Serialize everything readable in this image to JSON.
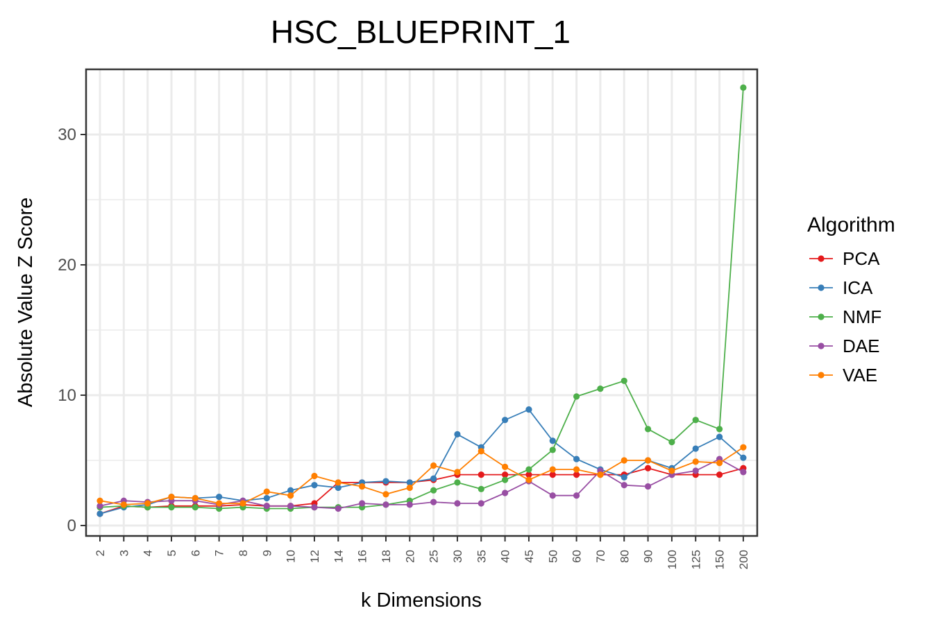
{
  "chart_data": {
    "type": "line",
    "title": "HSC_BLUEPRINT_1",
    "xlabel": "k Dimensions",
    "ylabel": "Absolute Value Z Score",
    "categories": [
      "2",
      "3",
      "4",
      "5",
      "6",
      "7",
      "8",
      "9",
      "10",
      "12",
      "14",
      "16",
      "18",
      "20",
      "25",
      "30",
      "35",
      "40",
      "45",
      "50",
      "60",
      "70",
      "80",
      "90",
      "100",
      "125",
      "150",
      "200"
    ],
    "ylim": [
      -0.8,
      35
    ],
    "yticks": [
      0,
      10,
      20,
      30
    ],
    "grid": true,
    "legend": {
      "title": "Algorithm",
      "position": "right"
    },
    "series": [
      {
        "name": "PCA",
        "color": "#e41a1c",
        "values": [
          0.9,
          1.5,
          1.4,
          1.5,
          1.5,
          1.5,
          1.6,
          1.5,
          1.5,
          1.7,
          3.3,
          3.3,
          3.3,
          3.3,
          3.5,
          3.9,
          3.9,
          3.9,
          3.9,
          3.9,
          3.9,
          3.9,
          3.9,
          4.4,
          3.9,
          3.9,
          3.9,
          4.4
        ]
      },
      {
        "name": "ICA",
        "color": "#377eb8",
        "values": [
          0.9,
          1.4,
          1.6,
          2.2,
          2.1,
          2.2,
          1.9,
          2.1,
          2.7,
          3.1,
          2.9,
          3.3,
          3.4,
          3.3,
          3.6,
          7.0,
          6.0,
          8.1,
          8.9,
          6.5,
          5.1,
          4.3,
          3.7,
          5.0,
          4.4,
          5.9,
          6.8,
          5.2
        ]
      },
      {
        "name": "NMF",
        "color": "#4daf4a",
        "values": [
          1.4,
          1.5,
          1.4,
          1.4,
          1.4,
          1.3,
          1.4,
          1.3,
          1.3,
          1.4,
          1.4,
          1.4,
          1.6,
          1.9,
          2.7,
          3.3,
          2.8,
          3.5,
          4.3,
          5.8,
          9.9,
          10.5,
          11.1,
          7.4,
          6.4,
          8.1,
          7.4,
          33.6
        ]
      },
      {
        "name": "DAE",
        "color": "#984ea3",
        "values": [
          1.5,
          1.9,
          1.8,
          1.9,
          1.9,
          1.6,
          1.9,
          1.5,
          1.5,
          1.4,
          1.3,
          1.7,
          1.6,
          1.6,
          1.8,
          1.7,
          1.7,
          2.5,
          3.4,
          2.3,
          2.3,
          4.2,
          3.1,
          3.0,
          3.9,
          4.2,
          5.1,
          4.1
        ]
      },
      {
        "name": "VAE",
        "color": "#ff7f00",
        "values": [
          1.9,
          1.6,
          1.7,
          2.2,
          2.1,
          1.7,
          1.7,
          2.6,
          2.3,
          3.8,
          3.3,
          3.0,
          2.4,
          2.9,
          4.6,
          4.1,
          5.7,
          4.5,
          3.5,
          4.3,
          4.3,
          3.9,
          5.0,
          5.0,
          4.2,
          4.9,
          4.8,
          6.0
        ]
      }
    ]
  }
}
